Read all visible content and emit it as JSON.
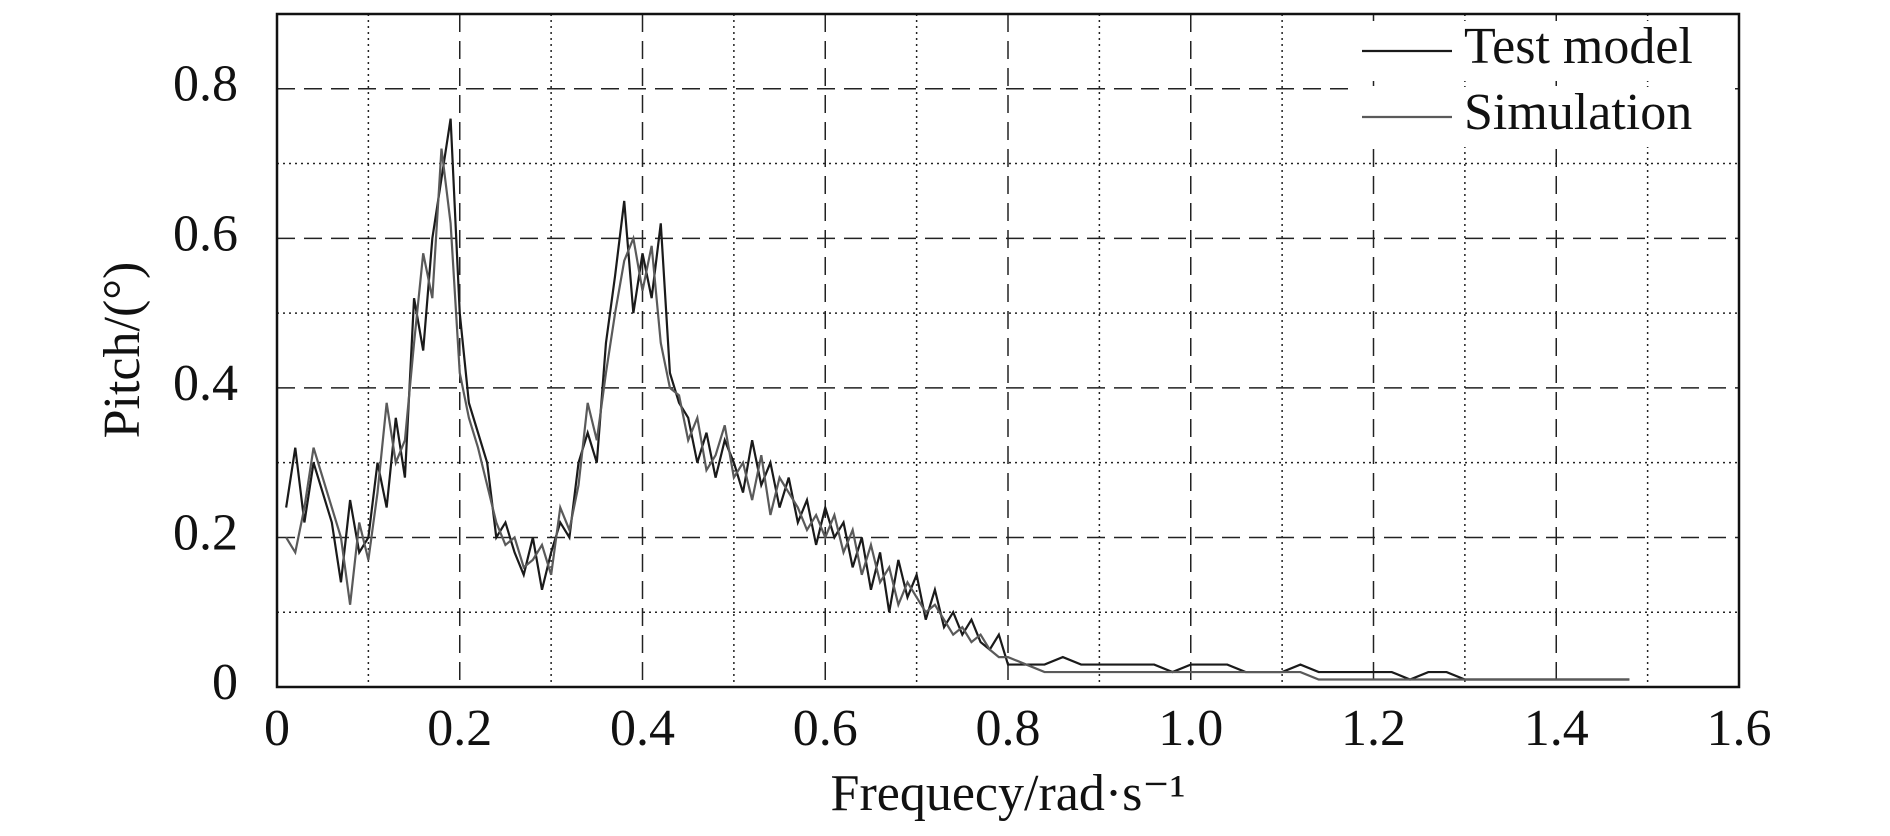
{
  "chart_data": {
    "type": "line",
    "x_label": "Frequecy/rad·s⁻¹",
    "y_label": "Pitch/(°)",
    "xlim": [
      0,
      1.6
    ],
    "ylim": [
      0,
      0.9
    ],
    "xticks": [
      0,
      0.2,
      0.4,
      0.6,
      0.8,
      {
        "value": 1,
        "label": "1.0"
      },
      1.2,
      1.4,
      1.6
    ],
    "yticks": [
      0,
      0.2,
      0.4,
      0.6,
      0.8
    ],
    "minor_xticks": [
      0.1,
      0.3,
      0.5,
      0.7,
      0.9,
      1.1,
      1.3,
      1.5
    ],
    "minor_yticks": [
      0.1,
      0.3,
      0.5,
      0.7
    ],
    "grid": true,
    "legend": "upper right",
    "x": [
      0.01,
      0.02,
      0.03,
      0.04,
      0.05,
      0.06,
      0.07,
      0.08,
      0.09,
      0.1,
      0.11,
      0.12,
      0.13,
      0.14,
      0.15,
      0.16,
      0.17,
      0.18,
      0.19,
      0.2,
      0.21,
      0.22,
      0.23,
      0.24,
      0.25,
      0.26,
      0.27,
      0.28,
      0.29,
      0.3,
      0.31,
      0.32,
      0.33,
      0.34,
      0.35,
      0.36,
      0.37,
      0.38,
      0.39,
      0.4,
      0.41,
      0.42,
      0.43,
      0.44,
      0.45,
      0.46,
      0.47,
      0.48,
      0.49,
      0.5,
      0.51,
      0.52,
      0.53,
      0.54,
      0.55,
      0.56,
      0.57,
      0.58,
      0.59,
      0.6,
      0.61,
      0.62,
      0.63,
      0.64,
      0.65,
      0.66,
      0.67,
      0.68,
      0.69,
      0.7,
      0.71,
      0.72,
      0.73,
      0.74,
      0.75,
      0.76,
      0.77,
      0.78,
      0.79,
      0.8,
      0.82,
      0.84,
      0.86,
      0.88,
      0.9,
      0.92,
      0.94,
      0.96,
      0.98,
      1.0,
      1.02,
      1.04,
      1.06,
      1.08,
      1.1,
      1.12,
      1.14,
      1.16,
      1.18,
      1.2,
      1.22,
      1.24,
      1.26,
      1.28,
      1.3,
      1.32,
      1.34,
      1.36,
      1.38,
      1.4,
      1.42,
      1.44,
      1.46,
      1.48
    ],
    "series": [
      {
        "name": "Test model",
        "color": "#1a1a1a",
        "values": [
          0.24,
          0.32,
          0.22,
          0.3,
          0.26,
          0.22,
          0.14,
          0.25,
          0.18,
          0.2,
          0.3,
          0.24,
          0.36,
          0.28,
          0.52,
          0.45,
          0.6,
          0.68,
          0.76,
          0.5,
          0.38,
          0.34,
          0.3,
          0.2,
          0.22,
          0.18,
          0.15,
          0.2,
          0.13,
          0.18,
          0.22,
          0.2,
          0.3,
          0.34,
          0.3,
          0.46,
          0.55,
          0.65,
          0.5,
          0.58,
          0.52,
          0.62,
          0.42,
          0.38,
          0.36,
          0.3,
          0.34,
          0.28,
          0.33,
          0.3,
          0.26,
          0.33,
          0.27,
          0.3,
          0.24,
          0.28,
          0.22,
          0.25,
          0.19,
          0.24,
          0.2,
          0.22,
          0.16,
          0.2,
          0.13,
          0.18,
          0.1,
          0.17,
          0.12,
          0.15,
          0.09,
          0.13,
          0.08,
          0.1,
          0.07,
          0.09,
          0.06,
          0.05,
          0.07,
          0.03,
          0.03,
          0.03,
          0.04,
          0.03,
          0.03,
          0.03,
          0.03,
          0.03,
          0.02,
          0.03,
          0.03,
          0.03,
          0.02,
          0.02,
          0.02,
          0.03,
          0.02,
          0.02,
          0.02,
          0.02,
          0.02,
          0.01,
          0.02,
          0.02,
          0.01,
          0.01,
          0.01,
          0.01,
          0.01,
          0.01,
          0.01,
          0.01,
          0.01,
          0.01
        ]
      },
      {
        "name": "Simulation",
        "color": "#5a5a5a",
        "values": [
          0.2,
          0.18,
          0.24,
          0.32,
          0.28,
          0.24,
          0.2,
          0.11,
          0.22,
          0.17,
          0.26,
          0.38,
          0.3,
          0.33,
          0.46,
          0.58,
          0.52,
          0.72,
          0.62,
          0.42,
          0.36,
          0.32,
          0.27,
          0.22,
          0.19,
          0.2,
          0.16,
          0.17,
          0.19,
          0.15,
          0.24,
          0.21,
          0.27,
          0.38,
          0.33,
          0.42,
          0.5,
          0.57,
          0.6,
          0.53,
          0.59,
          0.46,
          0.4,
          0.39,
          0.33,
          0.36,
          0.29,
          0.31,
          0.35,
          0.28,
          0.3,
          0.25,
          0.31,
          0.23,
          0.28,
          0.26,
          0.24,
          0.21,
          0.23,
          0.2,
          0.23,
          0.18,
          0.21,
          0.15,
          0.19,
          0.14,
          0.16,
          0.11,
          0.14,
          0.12,
          0.1,
          0.11,
          0.09,
          0.07,
          0.08,
          0.06,
          0.07,
          0.05,
          0.04,
          0.04,
          0.03,
          0.02,
          0.02,
          0.02,
          0.02,
          0.02,
          0.02,
          0.02,
          0.02,
          0.02,
          0.02,
          0.02,
          0.02,
          0.02,
          0.02,
          0.02,
          0.01,
          0.01,
          0.01,
          0.01,
          0.01,
          0.01,
          0.01,
          0.01,
          0.01,
          0.01,
          0.01,
          0.01,
          0.01,
          0.01,
          0.01,
          0.01,
          0.01,
          0.01
        ]
      }
    ]
  }
}
